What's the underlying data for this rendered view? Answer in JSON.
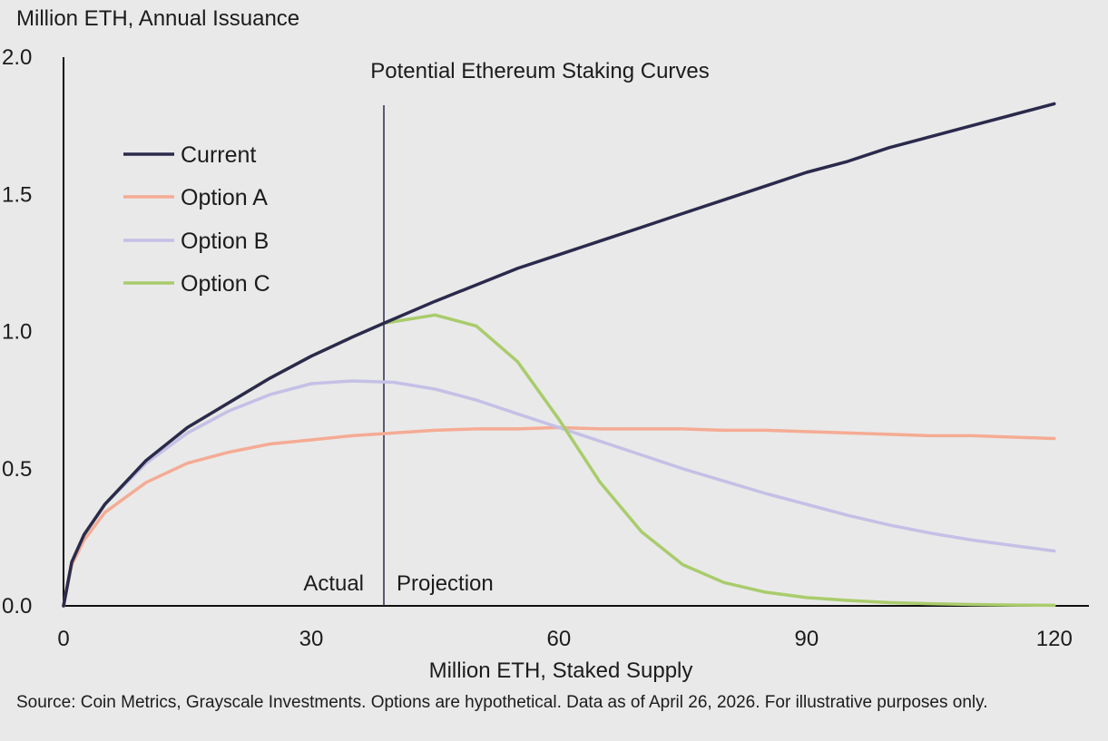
{
  "chart_data": {
    "type": "line",
    "title": "Potential Ethereum Staking Curves",
    "ylabel": "Million ETH, Annual Issuance",
    "xlabel": "Million ETH, Staked Supply",
    "xlim": [
      0,
      122
    ],
    "ylim": [
      0,
      2.0
    ],
    "xticks": [
      "0",
      "30",
      "60",
      "90",
      "120"
    ],
    "xtick_values": [
      0,
      30,
      60,
      90,
      120
    ],
    "yticks": [
      "0.0",
      "0.5",
      "1.0",
      "1.5",
      "2.0"
    ],
    "ytick_values": [
      0,
      0.5,
      1.0,
      1.5,
      2.0
    ],
    "grid": false,
    "legend_position": "top-left",
    "divider": {
      "x": 38.8,
      "left_label": "Actual",
      "right_label": "Projection"
    },
    "series": [
      {
        "name": "Current",
        "color": "#2b2a4c",
        "x": [
          0,
          1,
          2.5,
          5,
          10,
          15,
          20,
          25,
          30,
          35,
          38.8,
          45,
          50,
          55,
          60,
          65,
          70,
          75,
          80,
          85,
          90,
          95,
          100,
          105,
          110,
          115,
          120
        ],
        "y": [
          0,
          0.16,
          0.26,
          0.37,
          0.53,
          0.65,
          0.74,
          0.83,
          0.91,
          0.98,
          1.03,
          1.11,
          1.17,
          1.23,
          1.28,
          1.33,
          1.38,
          1.43,
          1.48,
          1.53,
          1.58,
          1.62,
          1.67,
          1.71,
          1.75,
          1.79,
          1.83
        ]
      },
      {
        "name": "Option A",
        "color": "#f5ab94",
        "x": [
          0,
          1,
          2.5,
          5,
          10,
          15,
          20,
          25,
          30,
          35,
          40,
          45,
          50,
          55,
          60,
          65,
          70,
          75,
          80,
          85,
          90,
          95,
          100,
          105,
          110,
          115,
          120
        ],
        "y": [
          0,
          0.15,
          0.24,
          0.34,
          0.45,
          0.52,
          0.56,
          0.59,
          0.605,
          0.62,
          0.63,
          0.64,
          0.645,
          0.645,
          0.65,
          0.645,
          0.645,
          0.645,
          0.64,
          0.64,
          0.635,
          0.63,
          0.625,
          0.62,
          0.62,
          0.615,
          0.61
        ]
      },
      {
        "name": "Option B",
        "color": "#c4c0e6",
        "x": [
          0,
          1,
          2.5,
          5,
          10,
          15,
          20,
          25,
          30,
          35,
          40,
          45,
          50,
          55,
          60,
          65,
          70,
          75,
          80,
          85,
          90,
          95,
          100,
          105,
          110,
          115,
          120
        ],
        "y": [
          0,
          0.16,
          0.26,
          0.37,
          0.52,
          0.63,
          0.71,
          0.77,
          0.81,
          0.82,
          0.815,
          0.79,
          0.75,
          0.7,
          0.65,
          0.6,
          0.55,
          0.5,
          0.455,
          0.41,
          0.37,
          0.33,
          0.295,
          0.265,
          0.24,
          0.22,
          0.2
        ]
      },
      {
        "name": "Option C",
        "color": "#a9cc6b",
        "x": [
          0,
          1,
          2.5,
          5,
          10,
          15,
          20,
          25,
          30,
          35,
          38.8,
          45,
          50,
          55,
          60,
          65,
          70,
          75,
          80,
          85,
          90,
          95,
          100,
          105,
          110,
          115,
          120
        ],
        "y": [
          0,
          0.16,
          0.26,
          0.37,
          0.53,
          0.65,
          0.74,
          0.83,
          0.91,
          0.98,
          1.03,
          1.06,
          1.02,
          0.89,
          0.68,
          0.45,
          0.27,
          0.15,
          0.085,
          0.05,
          0.03,
          0.02,
          0.012,
          0.008,
          0.005,
          0.003,
          0.002
        ]
      }
    ]
  },
  "source_note": "Source: Coin Metrics, Grayscale Investments. Options are hypothetical. Data as of April 26, 2026. For illustrative purposes only."
}
